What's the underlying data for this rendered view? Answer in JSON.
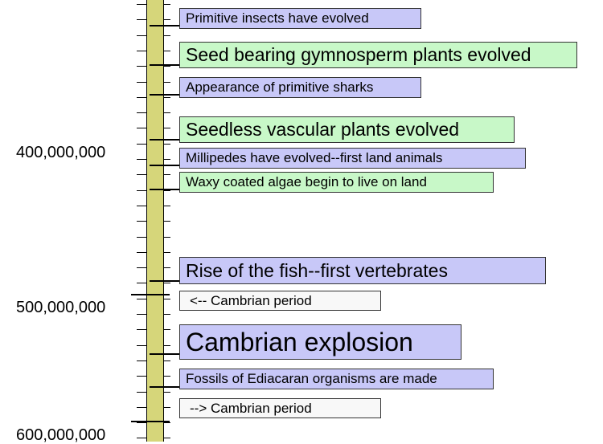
{
  "axis_labels": [
    "400,000,000",
    "500,000,000",
    "600,000,000"
  ],
  "events": [
    {
      "text": "Primitive insects have evolved",
      "color": "blue"
    },
    {
      "text": "Seed bearing gymnosperm plants evolved",
      "color": "green"
    },
    {
      "text": "Appearance of primitive sharks",
      "color": "blue"
    },
    {
      "text": "Seedless vascular plants evolved",
      "color": "green"
    },
    {
      "text": "Millipedes have evolved--first land animals",
      "color": "blue"
    },
    {
      "text": "Waxy coated algae begin to live on land",
      "color": "green"
    },
    {
      "text": "Rise of the fish--first vertebrates",
      "color": "blue"
    },
    {
      "text": "<-- Cambrian period",
      "color": "white"
    },
    {
      "text": "Cambrian explosion",
      "color": "blue"
    },
    {
      "text": "Fossils of Ediacaran organisms are made",
      "color": "blue"
    },
    {
      "text": "--> Cambrian period",
      "color": "white"
    }
  ],
  "colors": {
    "bar": "#d6d67a",
    "blue": "#c8c8f8",
    "green": "#c8f8c8",
    "white": "#f8f8f8"
  }
}
